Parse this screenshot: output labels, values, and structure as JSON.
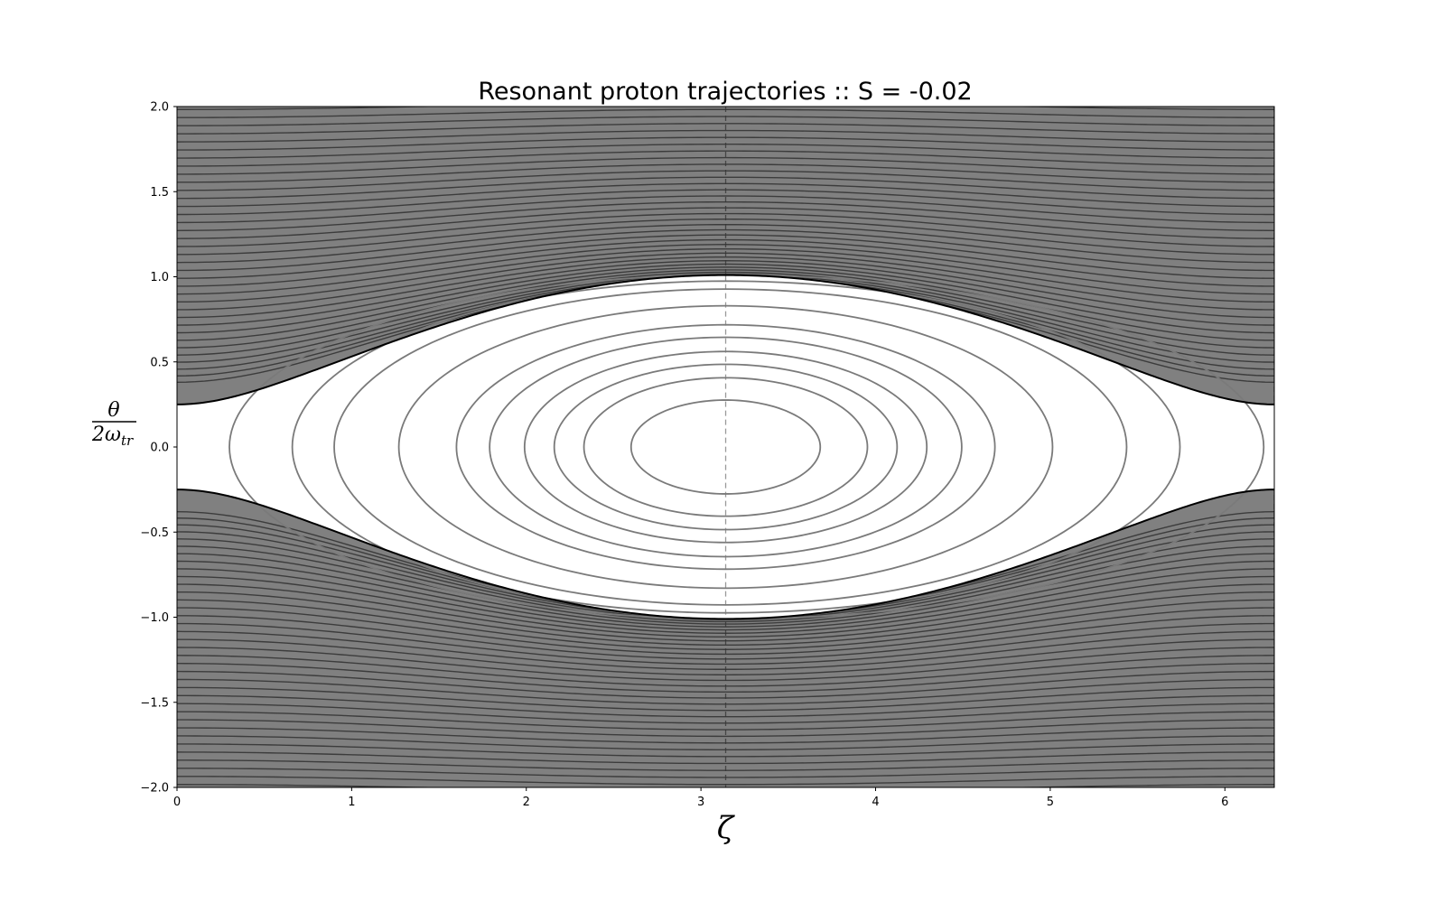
{
  "chart_data": {
    "type": "contour",
    "title": "Resonant proton trajectories :: S = -0.02",
    "S": -0.02,
    "xlabel": "ζ",
    "ylabel": {
      "numerator": "θ",
      "denominator": "2ω",
      "denominator_sub": "tr"
    },
    "xlim": [
      0,
      6.283
    ],
    "ylim": [
      -2.0,
      2.0
    ],
    "x_ticks": [
      "0",
      "1",
      "2",
      "3",
      "4",
      "5",
      "6"
    ],
    "y_ticks": [
      "2.0",
      "1.5",
      "1.0",
      "0.5",
      "0.0",
      "−0.5",
      "−1.0",
      "−1.5",
      "−2.0"
    ],
    "x_tick_values": [
      0,
      1,
      2,
      3,
      4,
      5,
      6
    ],
    "y_tick_values": [
      2.0,
      1.5,
      1.0,
      0.5,
      0.0,
      -0.5,
      -1.0,
      -1.5,
      -2.0
    ],
    "separatrix": {
      "max_half_width": 1.01,
      "half_width_at_x0": 0.25,
      "center_x": 3.1416,
      "x_point": 6.283
    },
    "trapped_orbits_left_x": [
      0.3,
      0.66,
      0.9,
      1.27,
      1.6,
      1.79,
      1.99,
      2.16,
      2.33,
      2.6
    ],
    "vertical_reference_lines_x": [
      3.1416,
      6.283
    ],
    "colors": {
      "fill_outside": "#808080",
      "untrapped_lines": "#3c3c3c",
      "trapped_lines": "#7a7a7a",
      "separatrix": "#000000",
      "inner_region": "#ffffff"
    }
  }
}
